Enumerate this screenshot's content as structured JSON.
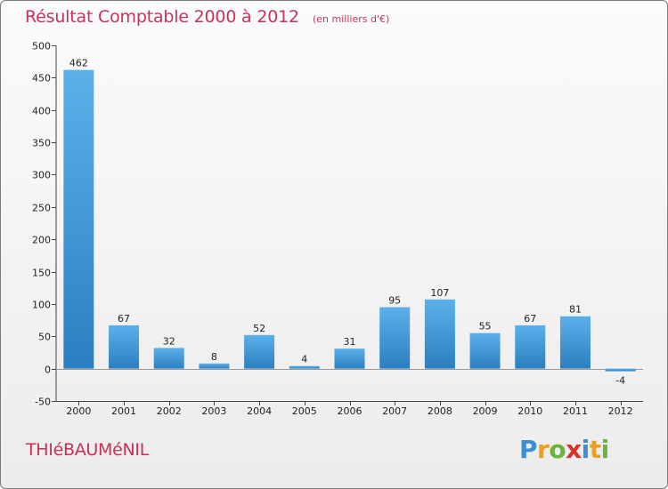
{
  "header": {
    "title": "Résultat Comptable 2000 à 2012",
    "unit_note": "(en milliers d'€)"
  },
  "footer": {
    "place_name": "THIéBAUMéNIL",
    "brand_letters": [
      "P",
      "r",
      "o",
      "x",
      "i",
      "t",
      "i"
    ],
    "brand_colors": [
      "#3c8fd0",
      "#e8a020",
      "#6cb33e",
      "#d9342b",
      "#3c8fd0",
      "#e8a020",
      "#6cb33e"
    ]
  },
  "colors": {
    "bar_top": "#5cb0ea",
    "bar_bottom": "#2b7fc0",
    "text_accent": "#c8325a",
    "grid": "#cfcfcf"
  },
  "chart_data": {
    "type": "bar",
    "title": "Résultat Comptable 2000 à 2012",
    "subtitle": "(en milliers d'€)",
    "xlabel": "",
    "ylabel": "",
    "categories": [
      "2000",
      "2001",
      "2002",
      "2003",
      "2004",
      "2005",
      "2006",
      "2007",
      "2008",
      "2009",
      "2010",
      "2011",
      "2012"
    ],
    "values": [
      462,
      67,
      32,
      8,
      52,
      4,
      31,
      95,
      107,
      55,
      67,
      81,
      -4
    ],
    "ylim": [
      -50,
      500
    ],
    "yticks": [
      -50,
      0,
      50,
      100,
      150,
      200,
      250,
      300,
      350,
      400,
      450,
      500
    ],
    "grid": false
  }
}
